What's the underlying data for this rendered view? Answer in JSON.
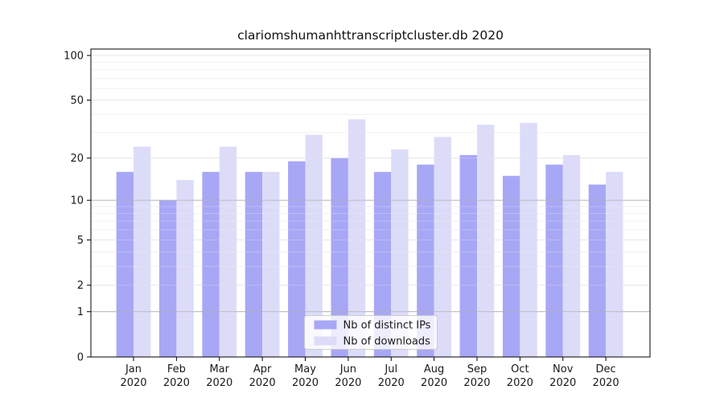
{
  "page": {
    "background": "#ffffff"
  },
  "chart_data": {
    "type": "bar",
    "title": "clariomshumanhttranscriptcluster.db 2020",
    "categories": [
      "Jan",
      "Feb",
      "Mar",
      "Apr",
      "May",
      "Jun",
      "Jul",
      "Aug",
      "Sep",
      "Oct",
      "Nov",
      "Dec"
    ],
    "x_tick_second_line": "2020",
    "series": [
      {
        "name": "Nb of distinct IPs",
        "key": "distinct-ips",
        "color": "#a7a7f6",
        "values": [
          16,
          10,
          16,
          16,
          19,
          20,
          16,
          18,
          21,
          15,
          18,
          13
        ]
      },
      {
        "name": "Nb of downloads",
        "key": "downloads",
        "color": "#dcdcf9",
        "values": [
          24,
          14,
          24,
          16,
          29,
          37,
          23,
          28,
          34,
          35,
          21,
          16
        ]
      }
    ],
    "y_scale": "log1p",
    "ylim": [
      0,
      100
    ],
    "y_ticks": [
      0,
      1,
      2,
      5,
      10,
      20,
      50,
      100
    ],
    "y_minor_ticks": [
      3,
      4,
      6,
      7,
      8,
      9,
      30,
      40,
      60,
      70,
      80,
      90
    ],
    "y_emphasized_gridlines": [
      1,
      10
    ],
    "grid": true,
    "legend_position": "inside-bottom-center",
    "colors": {
      "axis": "#000000",
      "tick_label": "#1a1a1a",
      "grid_minor": "#f2f2f2",
      "grid_major": "#e7e7e7",
      "grid_emphasis": "#b0b0b0",
      "legend_border": "#cccccc",
      "legend_background": "#ffffff"
    }
  }
}
